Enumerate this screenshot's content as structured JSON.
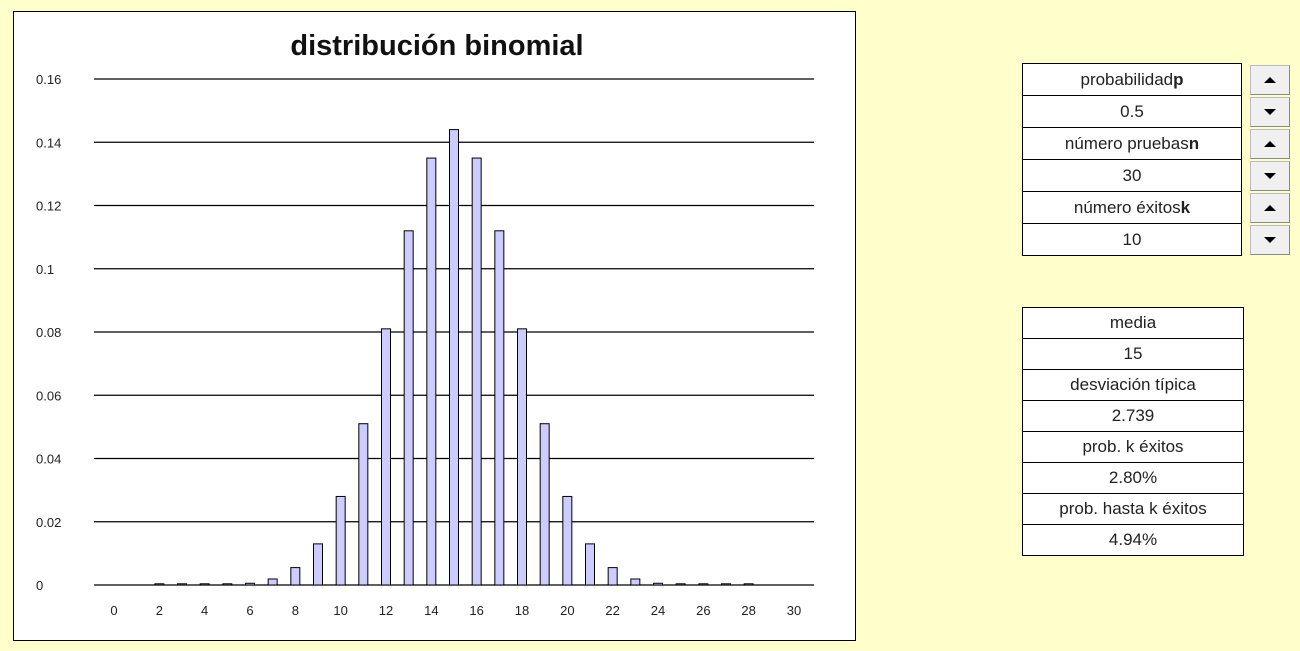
{
  "controls": [
    {
      "label": "probabilidad ",
      "label_bold": "p",
      "value": "0.5"
    },
    {
      "label": "número pruebas ",
      "label_bold": "n",
      "value": "30"
    },
    {
      "label": "número éxitos ",
      "label_bold": "k",
      "value": "10"
    }
  ],
  "icons": {
    "up": "triangle-up-icon",
    "down": "triangle-down-icon"
  },
  "stats": {
    "mean_label": "media",
    "mean_value": "15",
    "std_label": "desviación típica",
    "std_value": "2.739",
    "prob_k_label": "prob. k éxitos",
    "prob_k_value": "2.80%",
    "prob_upto_label": "prob. hasta k éxitos",
    "prob_upto_value": "4.94%"
  },
  "chart_data": {
    "type": "bar",
    "title": "distribución binomial",
    "xlabel": "",
    "ylabel": "",
    "xlim": [
      0,
      30
    ],
    "ylim": [
      0,
      0.16
    ],
    "x_ticks": [
      "0",
      "2",
      "4",
      "6",
      "8",
      "10",
      "12",
      "14",
      "16",
      "18",
      "20",
      "22",
      "24",
      "26",
      "28",
      "30"
    ],
    "y_ticks": [
      "0",
      "0.02",
      "0.04",
      "0.06",
      "0.08",
      "0.1",
      "0.12",
      "0.14",
      "0.16"
    ],
    "grid": true,
    "bar_color": "#CCCCFF",
    "x": [
      2,
      3,
      4,
      5,
      6,
      7,
      8,
      9,
      10,
      11,
      12,
      13,
      14,
      15,
      16,
      17,
      18,
      19,
      20,
      21,
      22,
      23,
      24,
      25,
      26,
      27,
      28
    ],
    "values": [
      4e-07,
      3.8e-06,
      2.6e-05,
      0.00013,
      0.00055,
      0.0019,
      0.0055,
      0.013,
      0.028,
      0.051,
      0.081,
      0.112,
      0.135,
      0.144,
      0.135,
      0.112,
      0.081,
      0.051,
      0.028,
      0.013,
      0.0055,
      0.0019,
      0.00055,
      0.00013,
      2.6e-05,
      3.8e-06,
      4e-07
    ]
  }
}
